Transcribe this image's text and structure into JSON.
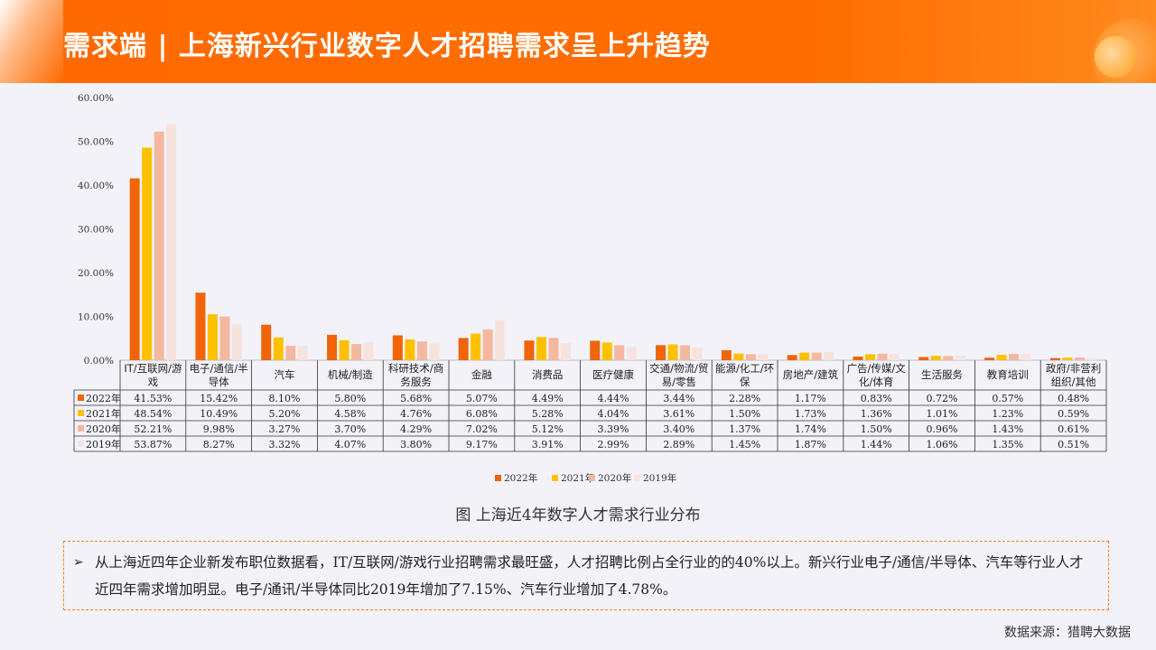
{
  "header": {
    "title": "需求端 | 上海新兴行业数字人才招聘需求呈上升趋势"
  },
  "caption": "图 上海近4年数字人才需求行业分布",
  "note": {
    "arrow": "➢",
    "text": "从上海近四年企业新发布职位数据看，IT/互联网/游戏行业招聘需求最旺盛，人才招聘比例占全行业的的40%以上。新兴行业电子/通信/半导体、汽车等行业人才近四年需求增加明显。电子/通讯/半导体同比2019年增加了7.15%、汽车行业增加了4.78%。"
  },
  "source": "数据来源：猎聘大数据",
  "colors": {
    "2022年": "#f0640a",
    "2021年": "#ffc000",
    "2020年": "#f4b8a0",
    "2019年": "#f7e3de"
  },
  "chart_data": {
    "type": "bar",
    "ylim": [
      0,
      60
    ],
    "yticks": [
      "0.00%",
      "10.00%",
      "20.00%",
      "30.00%",
      "40.00%",
      "50.00%",
      "60.00%"
    ],
    "categories": [
      [
        "IT/互联网/游",
        "戏"
      ],
      [
        "电子/通信/半",
        "导体"
      ],
      [
        "汽车"
      ],
      [
        "机械/制造"
      ],
      [
        "科研技术/商",
        "务服务"
      ],
      [
        "金融"
      ],
      [
        "消费品"
      ],
      [
        "医疗健康"
      ],
      [
        "交通/物流/贸",
        "易/零售"
      ],
      [
        "能源/化工/环",
        "保"
      ],
      [
        "房地产/建筑"
      ],
      [
        "广告/传媒/文",
        "化/体育"
      ],
      [
        "生活服务"
      ],
      [
        "教育培训"
      ],
      [
        "政府/非营利",
        "组织/其他"
      ]
    ],
    "series": [
      {
        "name": "2022年",
        "values": [
          41.53,
          15.42,
          8.1,
          5.8,
          5.68,
          5.07,
          4.49,
          4.44,
          3.44,
          2.28,
          1.17,
          0.83,
          0.72,
          0.57,
          0.48
        ],
        "labels": [
          "41.53%",
          "15.42%",
          "8.10%",
          "5.80%",
          "5.68%",
          "5.07%",
          "4.49%",
          "4.44%",
          "3.44%",
          "2.28%",
          "1.17%",
          "0.83%",
          "0.72%",
          "0.57%",
          "0.48%"
        ]
      },
      {
        "name": "2021年",
        "values": [
          48.54,
          10.49,
          5.2,
          4.58,
          4.76,
          6.08,
          5.28,
          4.04,
          3.61,
          1.5,
          1.73,
          1.36,
          1.01,
          1.23,
          0.59
        ],
        "labels": [
          "48.54%",
          "10.49%",
          "5.20%",
          "4.58%",
          "4.76%",
          "6.08%",
          "5.28%",
          "4.04%",
          "3.61%",
          "1.50%",
          "1.73%",
          "1.36%",
          "1.01%",
          "1.23%",
          "0.59%"
        ]
      },
      {
        "name": "2020年",
        "values": [
          52.21,
          9.98,
          3.27,
          3.7,
          4.29,
          7.02,
          5.12,
          3.39,
          3.4,
          1.37,
          1.74,
          1.5,
          0.96,
          1.43,
          0.61
        ],
        "labels": [
          "52.21%",
          "9.98%",
          "3.27%",
          "3.70%",
          "4.29%",
          "7.02%",
          "5.12%",
          "3.39%",
          "3.40%",
          "1.37%",
          "1.74%",
          "1.50%",
          "0.96%",
          "1.43%",
          "0.61%"
        ]
      },
      {
        "name": "2019年",
        "values": [
          53.87,
          8.27,
          3.32,
          4.07,
          3.8,
          9.17,
          3.91,
          2.99,
          2.89,
          1.45,
          1.87,
          1.44,
          1.06,
          1.35,
          0.51
        ],
        "labels": [
          "53.87%",
          "8.27%",
          "3.32%",
          "4.07%",
          "3.80%",
          "9.17%",
          "3.91%",
          "2.99%",
          "2.89%",
          "1.45%",
          "1.87%",
          "1.44%",
          "1.06%",
          "1.35%",
          "0.51%"
        ]
      }
    ],
    "legend": {
      "position": "bottom"
    }
  }
}
